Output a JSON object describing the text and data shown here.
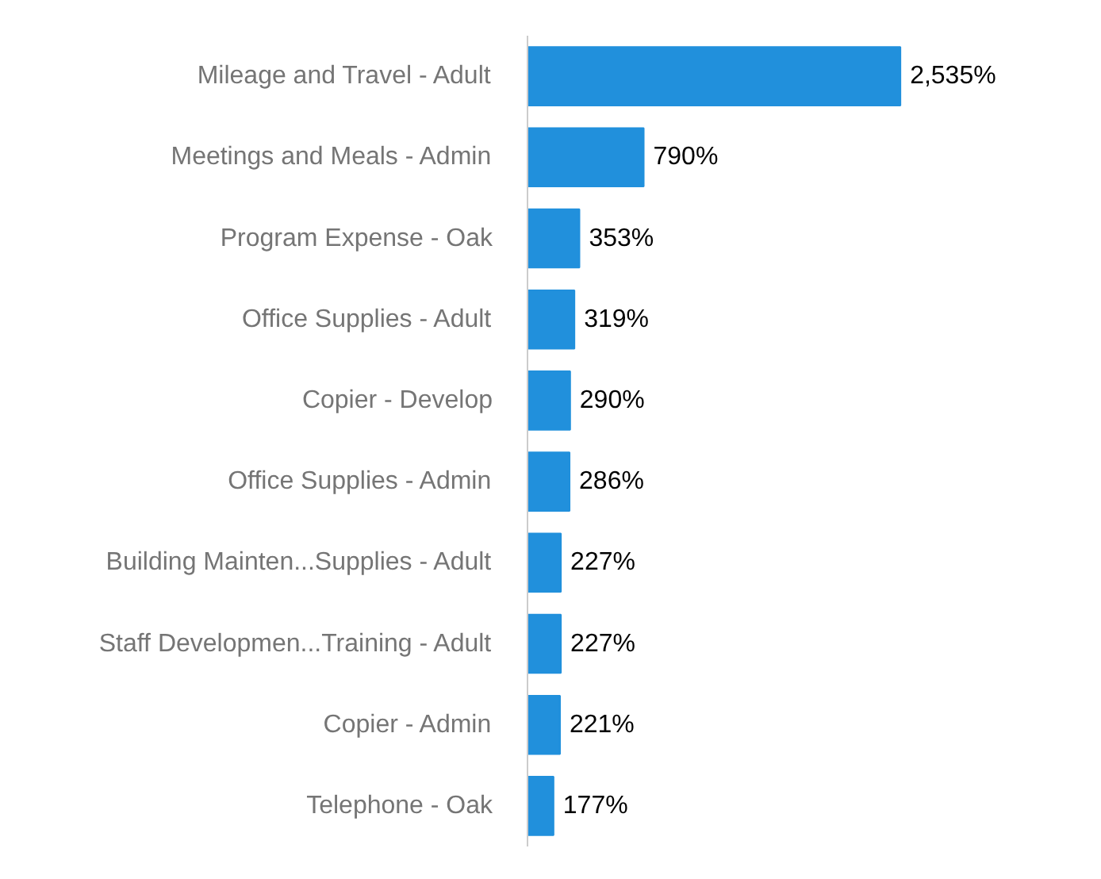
{
  "chart_data": {
    "type": "bar",
    "orientation": "horizontal",
    "color": "#2190dc",
    "categories": [
      "Mileage and Travel - Adult",
      "Meetings and Meals - Admin",
      "Program Expense - Oak",
      "Office Supplies - Adult",
      "Copier - Develop",
      "Office Supplies - Admin",
      "Building Mainten...Supplies - Adult",
      "Staff Developmen...Training - Adult",
      "Copier - Admin",
      "Telephone - Oak"
    ],
    "values": [
      2535,
      790,
      353,
      319,
      290,
      286,
      227,
      227,
      221,
      177
    ],
    "value_labels": [
      "2,535%",
      "790%",
      "353%",
      "319%",
      "290%",
      "286%",
      "227%",
      "227%",
      "221%",
      "177%"
    ],
    "grid": false
  }
}
